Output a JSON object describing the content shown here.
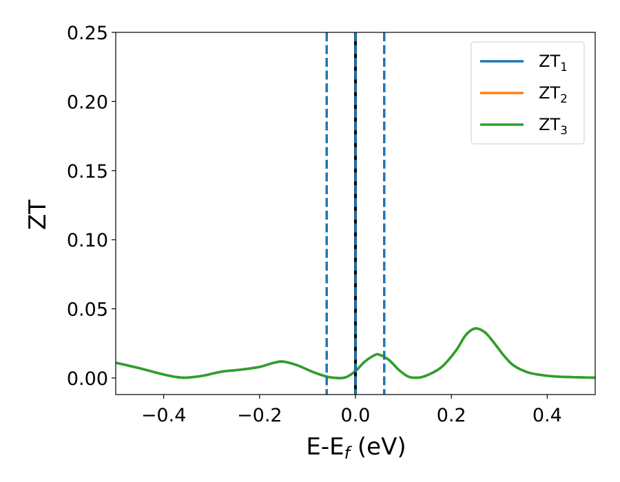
{
  "chart_data": {
    "type": "line",
    "xlabel": {
      "main": "E-E",
      "sub": "f",
      "unit": " (eV)"
    },
    "ylabel": "ZT",
    "xlim": [
      -0.5,
      0.5
    ],
    "ylim": [
      -0.012,
      0.25
    ],
    "x_ticks": [
      -0.4,
      -0.2,
      0.0,
      0.2,
      0.4
    ],
    "x_tick_labels": [
      "−0.4",
      "−0.2",
      "0.0",
      "0.2",
      "0.4"
    ],
    "y_ticks": [
      0.0,
      0.05,
      0.1,
      0.15,
      0.2,
      0.25
    ],
    "y_tick_labels": [
      "0.00",
      "0.05",
      "0.10",
      "0.15",
      "0.20",
      "0.25"
    ],
    "grid": false,
    "legend_position": "top-right",
    "series": [
      {
        "name": "ZT",
        "sub": "1",
        "color": "#1f77b4"
      },
      {
        "name": "ZT",
        "sub": "2",
        "color": "#ff7f0e"
      },
      {
        "name": "ZT",
        "sub": "3",
        "color": "#2ca02c"
      }
    ],
    "curve": {
      "x": [
        -0.5,
        -0.45,
        -0.4,
        -0.36,
        -0.32,
        -0.28,
        -0.24,
        -0.2,
        -0.17,
        -0.15,
        -0.12,
        -0.09,
        -0.06,
        -0.04,
        -0.02,
        0.0,
        0.02,
        0.04,
        0.05,
        0.07,
        0.09,
        0.11,
        0.13,
        0.15,
        0.18,
        0.21,
        0.23,
        0.25,
        0.27,
        0.29,
        0.31,
        0.33,
        0.36,
        0.39,
        0.42,
        0.46,
        0.5
      ],
      "y": [
        0.011,
        0.007,
        0.0025,
        0.0002,
        0.0015,
        0.0045,
        0.006,
        0.008,
        0.011,
        0.0118,
        0.009,
        0.0045,
        0.001,
        0.0,
        0.0005,
        0.005,
        0.012,
        0.0165,
        0.0168,
        0.013,
        0.006,
        0.001,
        0.0002,
        0.002,
        0.008,
        0.02,
        0.031,
        0.0358,
        0.033,
        0.025,
        0.016,
        0.009,
        0.004,
        0.002,
        0.001,
        0.0005,
        0.0002
      ]
    },
    "vertical_lines": [
      {
        "x": -0.06,
        "style": "dashed",
        "color": "#1f77b4"
      },
      {
        "x": 0.06,
        "style": "dashed",
        "color": "#1f77b4"
      },
      {
        "x": 0.0,
        "style": "solid",
        "color": "#000000"
      },
      {
        "x": 0.0,
        "style": "dashed",
        "color": "#1f77b4"
      }
    ]
  }
}
